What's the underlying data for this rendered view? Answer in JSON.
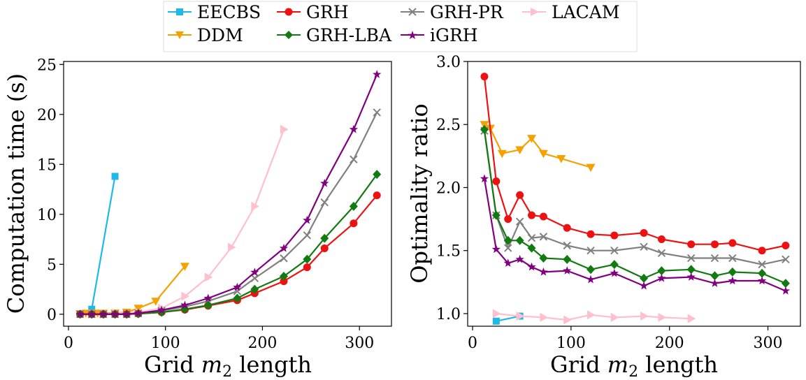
{
  "legend": {
    "entries": [
      "EECBS",
      "GRH",
      "GRH-PR",
      "LACAM",
      "DDM",
      "GRH-LBA",
      "iGRH"
    ]
  },
  "series_styles": {
    "EECBS": {
      "color": "#1fb8e8",
      "marker": "square"
    },
    "DDM": {
      "color": "#f5a100",
      "marker": "triangle-down"
    },
    "GRH": {
      "color": "#ee1111",
      "marker": "circle"
    },
    "GRH-LBA": {
      "color": "#117a11",
      "marker": "diamond"
    },
    "GRH-PR": {
      "color": "#808080",
      "marker": "x"
    },
    "iGRH": {
      "color": "#800080",
      "marker": "star"
    },
    "LACAM": {
      "color": "#ffbfcc",
      "marker": "triangle-right"
    }
  },
  "chart_data": [
    {
      "type": "line",
      "xlabel_prefix": "Grid ",
      "xlabel_var": "m",
      "xlabel_sub": "2",
      "xlabel_suffix": " length",
      "ylabel": "Computation time (s)",
      "xlim": [
        -5,
        333
      ],
      "ylim": [
        -1.2,
        25.3
      ],
      "xticks": [
        0,
        100,
        200,
        300
      ],
      "yticks": [
        0,
        5,
        10,
        15,
        20,
        25
      ],
      "grid": false,
      "series": [
        {
          "name": "EECBS",
          "x": [
            12,
            24,
            48
          ],
          "y": [
            0,
            0.5,
            13.8
          ]
        },
        {
          "name": "DDM",
          "x": [
            12,
            18,
            24,
            30,
            36,
            48,
            60,
            72,
            90,
            120
          ],
          "y": [
            0.05,
            0.1,
            0.1,
            0.1,
            0.1,
            0.12,
            0.2,
            0.6,
            1.3,
            4.8
          ]
        },
        {
          "name": "LACAM",
          "x": [
            24,
            36,
            48,
            72,
            96,
            120,
            144,
            168,
            192,
            222
          ],
          "y": [
            0,
            0,
            0.1,
            0.2,
            0.6,
            1.8,
            3.7,
            6.7,
            10.8,
            18.5
          ]
        },
        {
          "name": "GRH",
          "x": [
            12,
            24,
            36,
            48,
            60,
            72,
            96,
            120,
            144,
            174,
            192,
            222,
            246,
            264,
            294,
            318
          ],
          "y": [
            0,
            0,
            0,
            0,
            0,
            0.05,
            0.2,
            0.45,
            0.85,
            1.4,
            2.1,
            3.3,
            4.7,
            6.6,
            9.1,
            11.9
          ]
        },
        {
          "name": "GRH-LBA",
          "x": [
            12,
            24,
            36,
            48,
            60,
            72,
            96,
            120,
            144,
            174,
            192,
            222,
            246,
            264,
            294,
            318
          ],
          "y": [
            0,
            0,
            0,
            0,
            0,
            0.05,
            0.2,
            0.5,
            0.9,
            1.6,
            2.5,
            3.8,
            5.5,
            7.6,
            10.8,
            14.0
          ]
        },
        {
          "name": "GRH-PR",
          "x": [
            12,
            24,
            36,
            48,
            60,
            72,
            96,
            120,
            144,
            174,
            192,
            222,
            246,
            264,
            294,
            318
          ],
          "y": [
            0,
            0,
            0,
            0,
            0,
            0.1,
            0.35,
            0.75,
            1.3,
            2.3,
            3.6,
            5.6,
            7.9,
            11.2,
            15.5,
            20.2
          ]
        },
        {
          "name": "iGRH",
          "x": [
            12,
            24,
            36,
            48,
            60,
            72,
            96,
            120,
            144,
            174,
            192,
            222,
            246,
            264,
            294,
            318
          ],
          "y": [
            0,
            0,
            0,
            0,
            0,
            0.1,
            0.4,
            0.9,
            1.6,
            2.7,
            4.2,
            6.6,
            9.4,
            13.1,
            18.5,
            24.0
          ]
        }
      ]
    },
    {
      "type": "line",
      "xlabel_prefix": "Grid ",
      "xlabel_var": "m",
      "xlabel_sub": "2",
      "xlabel_suffix": " length",
      "ylabel": "Optimality ratio",
      "xlim": [
        -5,
        333
      ],
      "ylim": [
        0.9,
        3.0
      ],
      "xticks": [
        0,
        100,
        200,
        300
      ],
      "yticks": [
        1.0,
        1.5,
        2.0,
        2.5,
        3.0
      ],
      "ytick_decimals": 1,
      "grid": false,
      "series": [
        {
          "name": "EECBS",
          "x": [
            24,
            48
          ],
          "y": [
            0.94,
            0.98
          ]
        },
        {
          "name": "DDM",
          "x": [
            12,
            18,
            30,
            48,
            60,
            72,
            90,
            120
          ],
          "y": [
            2.5,
            2.47,
            2.27,
            2.3,
            2.39,
            2.27,
            2.23,
            2.16
          ]
        },
        {
          "name": "LACAM",
          "x": [
            24,
            48,
            72,
            96,
            120,
            144,
            174,
            192,
            222
          ],
          "y": [
            1.0,
            0.98,
            0.97,
            0.95,
            0.99,
            0.97,
            0.98,
            0.97,
            0.96
          ]
        },
        {
          "name": "GRH",
          "x": [
            12,
            24,
            36,
            48,
            60,
            72,
            96,
            120,
            144,
            174,
            192,
            222,
            246,
            264,
            294,
            318
          ],
          "y": [
            2.88,
            2.05,
            1.75,
            1.94,
            1.78,
            1.77,
            1.68,
            1.63,
            1.62,
            1.64,
            1.59,
            1.55,
            1.55,
            1.56,
            1.5,
            1.54
          ]
        },
        {
          "name": "GRH-LBA",
          "x": [
            12,
            24,
            36,
            48,
            60,
            72,
            96,
            120,
            144,
            174,
            192,
            222,
            246,
            264,
            294,
            318
          ],
          "y": [
            2.46,
            1.78,
            1.58,
            1.58,
            1.52,
            1.44,
            1.43,
            1.35,
            1.39,
            1.28,
            1.34,
            1.35,
            1.3,
            1.33,
            1.32,
            1.24
          ]
        },
        {
          "name": "GRH-PR",
          "x": [
            12,
            24,
            36,
            48,
            60,
            72,
            96,
            120,
            144,
            174,
            192,
            222,
            246,
            264,
            294,
            318
          ],
          "y": [
            2.45,
            1.78,
            1.52,
            1.73,
            1.6,
            1.61,
            1.54,
            1.5,
            1.5,
            1.53,
            1.48,
            1.44,
            1.44,
            1.44,
            1.39,
            1.43
          ]
        },
        {
          "name": "iGRH",
          "x": [
            12,
            24,
            36,
            48,
            60,
            72,
            96,
            120,
            144,
            174,
            192,
            222,
            246,
            264,
            294,
            318
          ],
          "y": [
            2.07,
            1.51,
            1.4,
            1.43,
            1.37,
            1.33,
            1.34,
            1.27,
            1.32,
            1.22,
            1.28,
            1.29,
            1.24,
            1.26,
            1.26,
            1.18
          ]
        }
      ]
    }
  ]
}
